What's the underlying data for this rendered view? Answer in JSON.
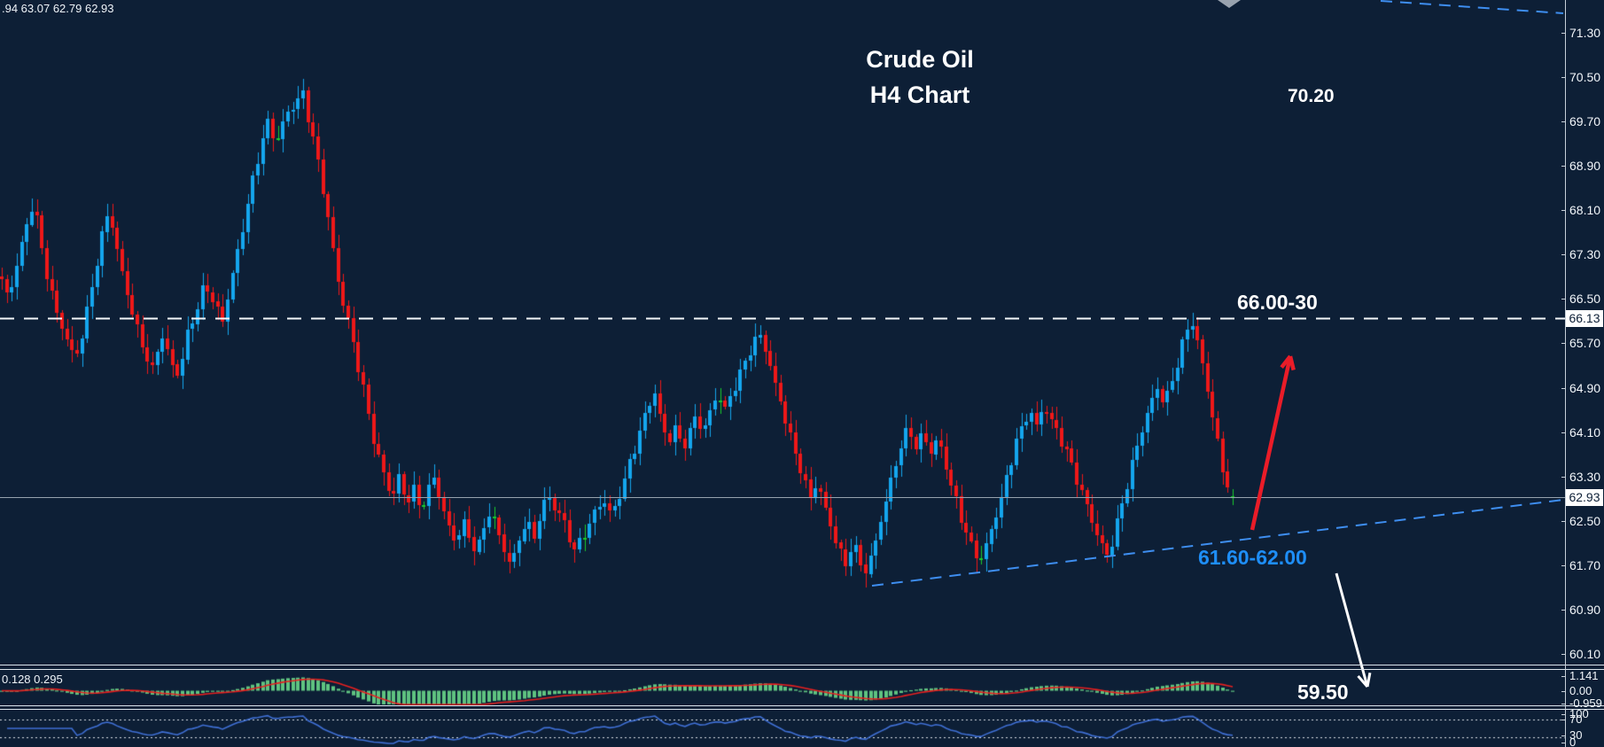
{
  "window": {
    "instrument": "Crude Oil",
    "timeframe": "H4"
  },
  "header": {
    "ohlc_readout": ".94 63.07 62.79 62.93",
    "title_line1": "Crude Oil",
    "title_line2": "H4 Chart"
  },
  "labels": {
    "upper_target": "70.20",
    "resistance_zone": "66.00-30",
    "support_zone": "61.60-62.00",
    "lower_target": "59.50",
    "macd_readout": "0.128 0.295"
  },
  "price_tags": {
    "resistance": "66.13",
    "current": "62.93"
  },
  "colors": {
    "background": "#0d1f36",
    "candle_up": "#14a6ee",
    "candle_down": "#ef1818",
    "candle_doji": "#18cc2c",
    "macd_bar": "#5fc380",
    "macd_signal": "#e81f1f",
    "rsi_line": "#3f6fd4",
    "level_dashed": "#f4f7fa",
    "current_line": "#96a2ae",
    "trendline_blue": "#3e8ef0",
    "arrow_up": "#ea1c28",
    "arrow_down": "#ffffff",
    "annotation_blue": "#1e8ef8",
    "axis_text": "#f2f6fa",
    "anchor_gray": "#98a2ae"
  },
  "chart_data": {
    "type": "candlestick",
    "title": "Crude Oil H4 Chart",
    "legend_position": "none",
    "grid": "off",
    "y_axis": {
      "min": 59.94,
      "max": 71.82,
      "ticks": [
        "71.30",
        "70.50",
        "69.70",
        "68.90",
        "68.10",
        "67.30",
        "66.50",
        "65.70",
        "64.90",
        "64.10",
        "63.30",
        "62.50",
        "61.70",
        "60.90",
        "60.10"
      ]
    },
    "last_candle": {
      "open": 62.94,
      "high": 63.07,
      "low": 62.79,
      "close": 62.93
    },
    "key_levels": [
      {
        "type": "horizontal-dashed-resistance",
        "price": 66.13,
        "label": "66.00-30"
      },
      {
        "type": "horizontal-current-price",
        "price": 62.93
      },
      {
        "type": "ascending-support-trendline",
        "from_price": 61.37,
        "to_price": 62.9,
        "label": "61.60-62.00"
      },
      {
        "type": "descending-upper-trendline",
        "from_price": 71.8,
        "to_price": 71.58
      }
    ],
    "projections": [
      {
        "type": "arrow-up",
        "color": "red",
        "toward_label": "66.00-30"
      },
      {
        "type": "arrow-down",
        "color": "white",
        "toward_label": "59.50"
      }
    ],
    "indicators": {
      "macd": {
        "readout": "0.128 0.295",
        "axis_ticks": [
          "1.141",
          "0.00",
          "-0.959"
        ]
      },
      "rsi": {
        "levels": [
          70,
          30
        ],
        "axis_ticks": [
          "100",
          "70",
          "30",
          "0"
        ]
      }
    },
    "price_path": [
      [
        0,
        66.9
      ],
      [
        10,
        66.5
      ],
      [
        20,
        67.2
      ],
      [
        30,
        67.8
      ],
      [
        38,
        68.3
      ],
      [
        46,
        67.5
      ],
      [
        55,
        66.8
      ],
      [
        65,
        66.2
      ],
      [
        75,
        65.8
      ],
      [
        85,
        65.4
      ],
      [
        95,
        66.0
      ],
      [
        105,
        66.8
      ],
      [
        115,
        67.6
      ],
      [
        123,
        68.15
      ],
      [
        132,
        67.4
      ],
      [
        142,
        66.7
      ],
      [
        152,
        66.1
      ],
      [
        162,
        65.6
      ],
      [
        172,
        65.2
      ],
      [
        182,
        65.9
      ],
      [
        192,
        65.4
      ],
      [
        202,
        65.1
      ],
      [
        212,
        65.9
      ],
      [
        222,
        66.3
      ],
      [
        232,
        66.8
      ],
      [
        242,
        66.4
      ],
      [
        252,
        66.1
      ],
      [
        262,
        66.9
      ],
      [
        272,
        67.6
      ],
      [
        282,
        68.4
      ],
      [
        292,
        69.1
      ],
      [
        302,
        69.7
      ],
      [
        312,
        69.3
      ],
      [
        322,
        69.8
      ],
      [
        332,
        70.0
      ],
      [
        342,
        70.2
      ],
      [
        352,
        69.5
      ],
      [
        360,
        68.9
      ],
      [
        368,
        68.2
      ],
      [
        376,
        67.4
      ],
      [
        384,
        66.6
      ],
      [
        392,
        66.2
      ],
      [
        400,
        65.6
      ],
      [
        410,
        64.9
      ],
      [
        418,
        64.2
      ],
      [
        426,
        63.7
      ],
      [
        434,
        63.3
      ],
      [
        442,
        62.9
      ],
      [
        450,
        63.3
      ],
      [
        458,
        62.8
      ],
      [
        466,
        63.1
      ],
      [
        474,
        62.7
      ],
      [
        482,
        63.0
      ],
      [
        490,
        63.3
      ],
      [
        498,
        62.8
      ],
      [
        506,
        62.4
      ],
      [
        514,
        62.1
      ],
      [
        522,
        62.5
      ],
      [
        530,
        62.2
      ],
      [
        538,
        61.9
      ],
      [
        546,
        62.4
      ],
      [
        554,
        62.7
      ],
      [
        562,
        62.3
      ],
      [
        570,
        61.9
      ],
      [
        578,
        61.7
      ],
      [
        586,
        62.2
      ],
      [
        594,
        62.5
      ],
      [
        602,
        62.2
      ],
      [
        610,
        62.6
      ],
      [
        618,
        63.0
      ],
      [
        626,
        62.7
      ],
      [
        634,
        62.6
      ],
      [
        642,
        62.2
      ],
      [
        650,
        61.95
      ],
      [
        660,
        62.3
      ],
      [
        670,
        62.6
      ],
      [
        680,
        62.9
      ],
      [
        690,
        62.6
      ],
      [
        698,
        62.9
      ],
      [
        706,
        63.3
      ],
      [
        714,
        63.7
      ],
      [
        722,
        64.1
      ],
      [
        730,
        64.5
      ],
      [
        738,
        64.85
      ],
      [
        746,
        64.3
      ],
      [
        754,
        63.9
      ],
      [
        762,
        64.2
      ],
      [
        770,
        63.8
      ],
      [
        778,
        64.1
      ],
      [
        786,
        64.4
      ],
      [
        794,
        64.1
      ],
      [
        802,
        64.5
      ],
      [
        810,
        64.8
      ],
      [
        818,
        64.5
      ],
      [
        826,
        64.8
      ],
      [
        834,
        65.1
      ],
      [
        842,
        65.4
      ],
      [
        850,
        65.7
      ],
      [
        858,
        65.85
      ],
      [
        866,
        65.5
      ],
      [
        874,
        65.0
      ],
      [
        882,
        64.6
      ],
      [
        890,
        64.1
      ],
      [
        898,
        63.7
      ],
      [
        906,
        63.3
      ],
      [
        914,
        62.9
      ],
      [
        922,
        63.2
      ],
      [
        930,
        62.8
      ],
      [
        938,
        62.4
      ],
      [
        946,
        62.0
      ],
      [
        954,
        61.7
      ],
      [
        962,
        62.1
      ],
      [
        970,
        61.8
      ],
      [
        978,
        61.55
      ],
      [
        986,
        62.0
      ],
      [
        994,
        62.5
      ],
      [
        1002,
        63.0
      ],
      [
        1010,
        63.5
      ],
      [
        1018,
        63.9
      ],
      [
        1026,
        64.2
      ],
      [
        1034,
        63.8
      ],
      [
        1042,
        64.1
      ],
      [
        1050,
        63.7
      ],
      [
        1058,
        64.0
      ],
      [
        1066,
        63.6
      ],
      [
        1074,
        63.1
      ],
      [
        1082,
        62.7
      ],
      [
        1090,
        62.3
      ],
      [
        1098,
        62.0
      ],
      [
        1106,
        61.75
      ],
      [
        1114,
        62.1
      ],
      [
        1122,
        62.5
      ],
      [
        1130,
        62.9
      ],
      [
        1138,
        63.4
      ],
      [
        1146,
        63.9
      ],
      [
        1154,
        64.2
      ],
      [
        1162,
        64.5
      ],
      [
        1170,
        64.2
      ],
      [
        1178,
        64.6
      ],
      [
        1186,
        64.3
      ],
      [
        1194,
        64.1
      ],
      [
        1202,
        63.8
      ],
      [
        1210,
        63.5
      ],
      [
        1218,
        63.1
      ],
      [
        1226,
        62.8
      ],
      [
        1234,
        62.4
      ],
      [
        1242,
        62.1
      ],
      [
        1250,
        61.85
      ],
      [
        1258,
        62.3
      ],
      [
        1266,
        62.8
      ],
      [
        1274,
        63.3
      ],
      [
        1282,
        63.8
      ],
      [
        1290,
        64.2
      ],
      [
        1298,
        64.6
      ],
      [
        1306,
        64.9
      ],
      [
        1314,
        64.6
      ],
      [
        1322,
        65.0
      ],
      [
        1330,
        65.4
      ],
      [
        1338,
        65.9
      ],
      [
        1344,
        66.15
      ],
      [
        1350,
        65.8
      ],
      [
        1356,
        65.4
      ],
      [
        1362,
        64.9
      ],
      [
        1368,
        64.4
      ],
      [
        1374,
        63.9
      ],
      [
        1380,
        63.4
      ],
      [
        1386,
        63.1
      ],
      [
        1391,
        62.93
      ]
    ]
  }
}
